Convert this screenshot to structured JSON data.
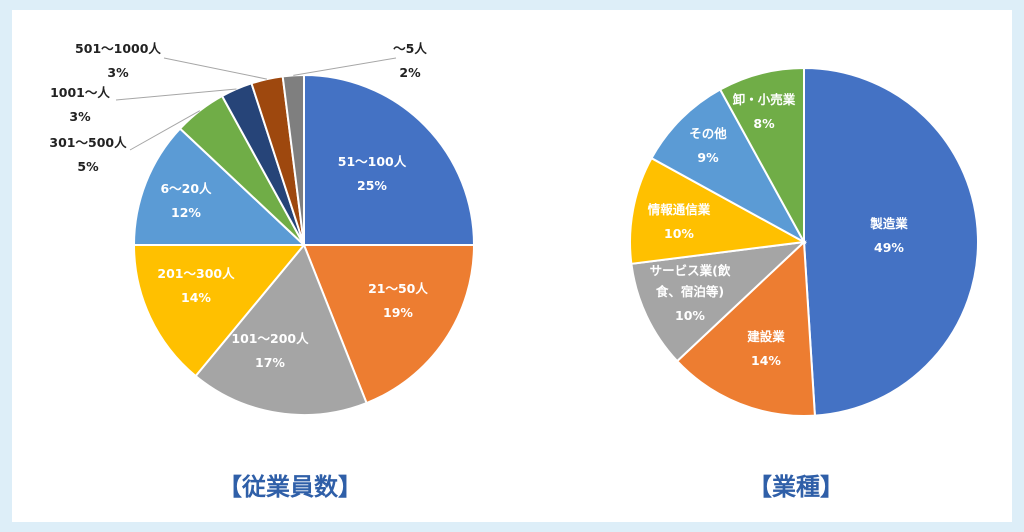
{
  "chart_data": [
    {
      "type": "pie",
      "title": "【従業員数】",
      "slices": [
        {
          "name": "51～100人",
          "value": 25,
          "label": "25%",
          "color": "#4472c4"
        },
        {
          "name": "21～50人",
          "value": 19,
          "label": "19%",
          "color": "#ed7d31"
        },
        {
          "name": "101～200人",
          "value": 17,
          "label": "17%",
          "color": "#a5a5a5"
        },
        {
          "name": "201～300人",
          "value": 14,
          "label": "14%",
          "color": "#ffc000"
        },
        {
          "name": "6～20人",
          "value": 12,
          "label": "12%",
          "color": "#5b9bd5"
        },
        {
          "name": "301～500人",
          "value": 5,
          "label": "5%",
          "color": "#70ad47"
        },
        {
          "name": "1001～人",
          "value": 3,
          "label": "3%",
          "color": "#264478"
        },
        {
          "name": "501～1000人",
          "value": 3,
          "label": "3%",
          "color": "#9e480e"
        },
        {
          "name": "～5人",
          "value": 2,
          "label": "2%",
          "color": "#7f7f7f"
        }
      ]
    },
    {
      "type": "pie",
      "title": "【業種】",
      "slices": [
        {
          "name": "製造業",
          "value": 49,
          "label": "49%",
          "color": "#4472c4"
        },
        {
          "name": "建設業",
          "value": 14,
          "label": "14%",
          "color": "#ed7d31"
        },
        {
          "name": "サービス業(飲食、宿泊等)",
          "value": 10,
          "label": "10%",
          "color": "#a5a5a5"
        },
        {
          "name": "情報通信業",
          "value": 10,
          "label": "10%",
          "color": "#ffc000"
        },
        {
          "name": "その他",
          "value": 9,
          "label": "9%",
          "color": "#5b9bd5"
        },
        {
          "name": "卸・小売業",
          "value": 8,
          "label": "8%",
          "color": "#70ad47"
        }
      ]
    }
  ]
}
